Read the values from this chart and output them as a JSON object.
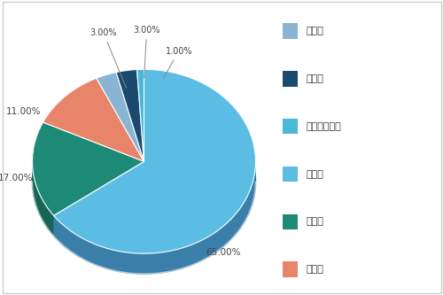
{
  "labels": [
    "压水堆",
    "沸水堆",
    "重水堆",
    "水冷堆",
    "气冷堆",
    "快中子反应堆"
  ],
  "values": [
    65,
    17,
    11,
    3,
    3,
    1
  ],
  "colors": [
    "#5bbde4",
    "#1d8a78",
    "#e8846a",
    "#8ab4d4",
    "#1a4a6e",
    "#4ab8d8"
  ],
  "side_colors": [
    "#3a7faa",
    "#156655",
    "#c06040",
    "#6090b0",
    "#102a4e",
    "#2a90b0"
  ],
  "pct_labels": [
    "65.00%",
    "17.00%",
    "11.00%",
    "3.00%",
    "3.00%",
    "1.00%"
  ],
  "legend_labels": [
    "水冷堆",
    "气冷堆",
    "快中子反应堆",
    "压水堆",
    "沸水堆",
    "重水堆"
  ],
  "legend_colors": [
    "#8ab4d4",
    "#1a4a6e",
    "#4ab8d8",
    "#5bbde4",
    "#1d8a78",
    "#e8846a"
  ],
  "background_color": "#ffffff",
  "start_angle": 90,
  "depth": 0.22
}
